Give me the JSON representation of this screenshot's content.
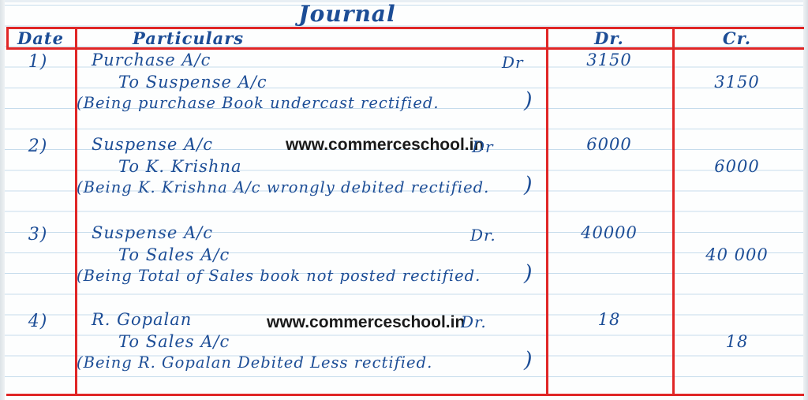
{
  "page": {
    "title": "Journal",
    "watermark": "www.commerceschool.in"
  },
  "header": {
    "date": "Date",
    "particulars": "Particulars",
    "dr": "Dr.",
    "cr": "Cr."
  },
  "entries": [
    {
      "no": "1)",
      "debit": "Purchase A/c",
      "marker": "Dr",
      "credit": "To Suspense A/c",
      "narration": "(Being purchase Book undercast rectified.",
      "paren": ")",
      "dr_amount": "3150",
      "cr_amount": "3150"
    },
    {
      "no": "2)",
      "debit": "Suspense A/c",
      "marker": "Dr",
      "credit": "To K. Krishna",
      "narration": "(Being K. Krishna A/c wrongly debited rectified.",
      "paren": ")",
      "dr_amount": "6000",
      "cr_amount": "6000"
    },
    {
      "no": "3)",
      "debit": "Suspense A/c",
      "marker": "Dr.",
      "credit": "To Sales A/c",
      "narration": "(Being Total of Sales book not posted rectified.",
      "paren": ")",
      "dr_amount": "40000",
      "cr_amount": "40 000"
    },
    {
      "no": "4)",
      "debit": "R. Gopalan",
      "marker": "Dr.",
      "credit": "To Sales A/c",
      "narration": "(Being R. Gopalan Debited Less rectified.",
      "paren": ")",
      "dr_amount": "18",
      "cr_amount": "18"
    }
  ],
  "colors": {
    "ink": "#1c4d96",
    "table_rule": "#e02626",
    "paper_rule": "#c6dcec",
    "watermark": "#1a1a1a"
  }
}
